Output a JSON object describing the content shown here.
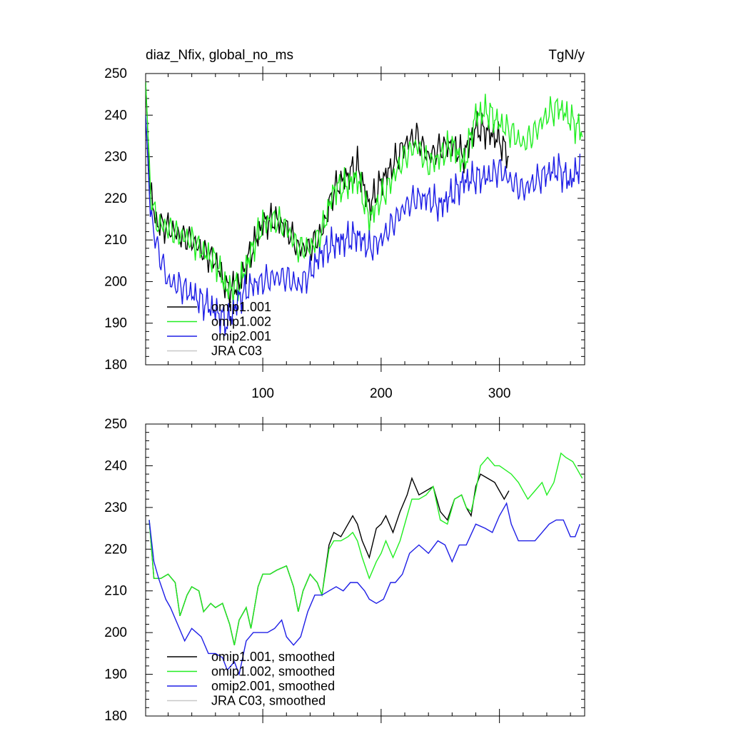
{
  "chart_data": [
    {
      "type": "line",
      "title": "diaz_Nfix, global_no_ms",
      "units": "TgN/y",
      "xlim": [
        1,
        372
      ],
      "ylim": [
        180,
        250
      ],
      "xticks": [
        100,
        200,
        300
      ],
      "xtick_labels": [
        "100",
        "200",
        "300"
      ],
      "yticks": [
        180,
        190,
        200,
        210,
        220,
        230,
        240,
        250
      ],
      "ytick_labels": [
        "180",
        "190",
        "200",
        "210",
        "220",
        "230",
        "240",
        "250"
      ],
      "legend": [
        "omip1.001",
        "omip1.002",
        "omip2.001",
        "JRA C03"
      ],
      "series": [
        {
          "name": "omip1.001",
          "color": "#000000",
          "x": [
            1,
            5,
            10,
            20,
            30,
            40,
            50,
            60,
            70,
            80,
            90,
            100,
            110,
            120,
            130,
            140,
            150,
            160,
            170,
            180,
            190,
            200,
            210,
            220,
            230,
            240,
            250,
            260,
            270,
            280,
            290,
            300,
            308
          ],
          "y": [
            248,
            222,
            214,
            213,
            211,
            210,
            207,
            205,
            198,
            199,
            207,
            214,
            215,
            213,
            208,
            208,
            212,
            222,
            225,
            228,
            218,
            224,
            228,
            233,
            235,
            230,
            232,
            233,
            230,
            237,
            236,
            234,
            230
          ]
        },
        {
          "name": "omip1.002",
          "color": "#22ee22",
          "x": [
            1,
            5,
            10,
            20,
            30,
            40,
            50,
            60,
            70,
            80,
            90,
            100,
            110,
            120,
            130,
            140,
            150,
            160,
            170,
            180,
            190,
            200,
            210,
            220,
            230,
            240,
            250,
            260,
            270,
            280,
            290,
            300,
            310,
            320,
            330,
            340,
            350,
            360,
            370
          ],
          "y": [
            248,
            222,
            214,
            213,
            211,
            210,
            207,
            205,
            198,
            199,
            207,
            214,
            215,
            213,
            208,
            208,
            212,
            222,
            223,
            225,
            215,
            220,
            225,
            230,
            233,
            228,
            230,
            233,
            228,
            240,
            241,
            238,
            236,
            233,
            236,
            240,
            242,
            239,
            236
          ]
        },
        {
          "name": "omip2.001",
          "color": "#1e1ee6",
          "x": [
            1,
            5,
            10,
            20,
            30,
            40,
            50,
            60,
            70,
            80,
            90,
            100,
            110,
            120,
            130,
            140,
            150,
            160,
            170,
            180,
            190,
            200,
            210,
            220,
            230,
            240,
            250,
            260,
            270,
            280,
            290,
            300,
            310,
            320,
            330,
            340,
            350,
            360,
            368
          ],
          "y": [
            240,
            217,
            209,
            200,
            199,
            197,
            195,
            193,
            190,
            196,
            199,
            200,
            201,
            201,
            199,
            202,
            207,
            209,
            210,
            211,
            208,
            210,
            214,
            218,
            220,
            220,
            218,
            221,
            224,
            225,
            225,
            227,
            224,
            222,
            224,
            226,
            227,
            224,
            228
          ]
        },
        {
          "name": "JRA C03",
          "color": "#c8c8c8",
          "x": [],
          "y": []
        }
      ]
    },
    {
      "type": "line",
      "title": "",
      "units": "",
      "xlim": [
        1,
        372
      ],
      "ylim": [
        180,
        250
      ],
      "xticks": [
        100,
        200,
        300
      ],
      "xtick_labels": [
        "",
        "",
        ""
      ],
      "yticks": [
        180,
        190,
        200,
        210,
        220,
        230,
        240,
        250
      ],
      "ytick_labels": [
        "180",
        "190",
        "200",
        "210",
        "220",
        "230",
        "240",
        "250"
      ],
      "legend": [
        "omip1.001, smoothed",
        "omip1.002, smoothed",
        "omip2.001, smoothed",
        "JRA C03, smoothed"
      ],
      "series": [
        {
          "name": "omip1.001, smoothed",
          "color": "#000000",
          "x": [
            4,
            8,
            14,
            20,
            26,
            30,
            36,
            40,
            46,
            50,
            56,
            60,
            66,
            72,
            76,
            80,
            86,
            90,
            96,
            100,
            106,
            112,
            120,
            126,
            130,
            134,
            140,
            146,
            150,
            156,
            160,
            166,
            172,
            176,
            180,
            184,
            190,
            196,
            200,
            204,
            210,
            216,
            222,
            226,
            232,
            238,
            244,
            250,
            256,
            262,
            268,
            272,
            276,
            280,
            284,
            290,
            296,
            300,
            304,
            308
          ],
          "y": [
            227,
            213,
            213,
            214,
            212,
            204,
            209,
            211,
            210,
            205,
            207,
            206,
            207,
            202,
            197,
            203,
            206,
            201,
            211,
            214,
            214,
            215,
            216,
            211,
            205,
            210,
            214,
            212,
            209,
            221,
            224,
            223,
            226,
            228,
            226,
            222,
            218,
            225,
            226,
            228,
            224,
            229,
            233,
            237,
            233,
            234,
            235,
            229,
            227,
            232,
            233,
            230,
            228,
            235,
            238,
            237,
            236,
            234,
            232,
            234
          ]
        },
        {
          "name": "omip1.002, smoothed",
          "color": "#22ee22",
          "x": [
            4,
            8,
            14,
            20,
            26,
            30,
            36,
            40,
            46,
            50,
            56,
            60,
            66,
            72,
            76,
            80,
            86,
            90,
            96,
            100,
            106,
            112,
            120,
            126,
            130,
            134,
            140,
            146,
            150,
            156,
            160,
            166,
            172,
            176,
            180,
            184,
            190,
            196,
            200,
            204,
            210,
            216,
            222,
            226,
            232,
            238,
            244,
            250,
            256,
            262,
            268,
            272,
            276,
            280,
            284,
            290,
            296,
            300,
            310,
            316,
            324,
            330,
            336,
            340,
            346,
            352,
            356,
            362,
            366,
            370
          ],
          "y": [
            227,
            213,
            213,
            214,
            212,
            204,
            209,
            211,
            210,
            205,
            207,
            206,
            207,
            202,
            197,
            203,
            206,
            201,
            211,
            214,
            214,
            215,
            216,
            211,
            205,
            210,
            214,
            212,
            209,
            220,
            222,
            222,
            223,
            224,
            222,
            218,
            213,
            217,
            219,
            222,
            218,
            222,
            228,
            232,
            232,
            233,
            235,
            227,
            226,
            232,
            233,
            230,
            229,
            234,
            240,
            242,
            240,
            240,
            238,
            236,
            232,
            234,
            236,
            233,
            236,
            243,
            242,
            241,
            239,
            237
          ]
        },
        {
          "name": "omip2.001, smoothed",
          "color": "#1e1ee6",
          "x": [
            4,
            8,
            12,
            18,
            22,
            28,
            34,
            40,
            48,
            54,
            60,
            66,
            70,
            76,
            80,
            86,
            92,
            98,
            104,
            110,
            116,
            120,
            126,
            132,
            138,
            144,
            150,
            156,
            162,
            168,
            174,
            180,
            186,
            190,
            196,
            202,
            208,
            212,
            218,
            224,
            232,
            240,
            248,
            254,
            260,
            266,
            272,
            280,
            288,
            294,
            300,
            306,
            310,
            316,
            322,
            330,
            336,
            342,
            348,
            354,
            360,
            364,
            368
          ],
          "y": [
            227,
            217,
            213,
            208,
            206,
            202,
            198,
            201,
            199,
            195,
            195,
            194,
            191,
            193,
            190,
            198,
            200,
            200,
            200,
            201,
            203,
            199,
            197,
            199,
            205,
            209,
            209,
            210,
            211,
            210,
            212,
            212,
            210,
            208,
            207,
            208,
            212,
            212,
            214,
            219,
            221,
            219,
            222,
            221,
            217,
            221,
            221,
            226,
            225,
            224,
            228,
            231,
            226,
            222,
            222,
            222,
            224,
            226,
            227,
            227,
            223,
            223,
            226
          ]
        },
        {
          "name": "JRA C03, smoothed",
          "color": "#c8c8c8",
          "x": [],
          "y": []
        }
      ]
    }
  ]
}
